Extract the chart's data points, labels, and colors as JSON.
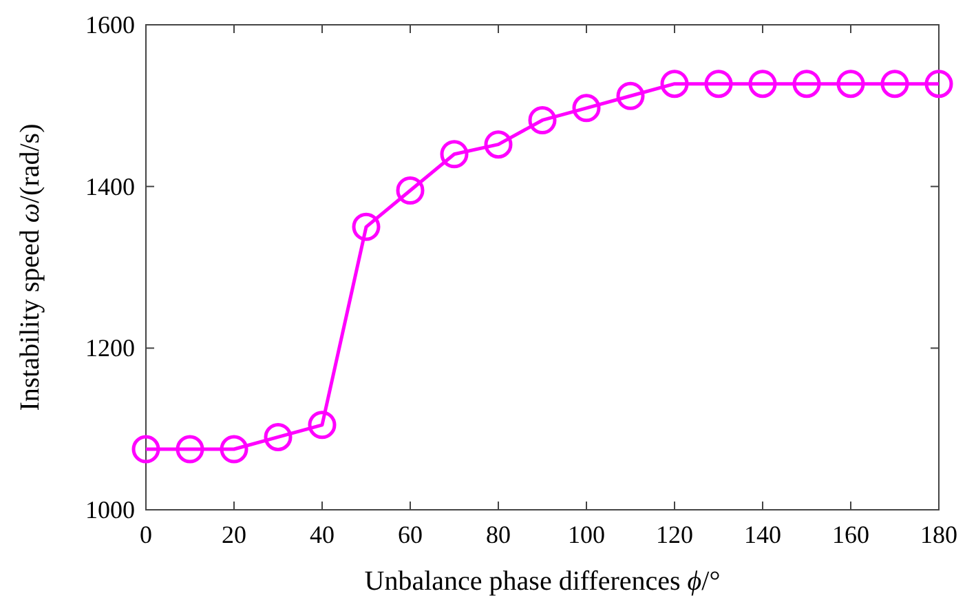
{
  "chart_data": {
    "type": "line",
    "xlabel": "Unbalance phase differences ϕ/°",
    "ylabel": "Instability speed ω/(rad/s)",
    "x": [
      0,
      10,
      20,
      30,
      40,
      50,
      60,
      70,
      80,
      90,
      100,
      110,
      120,
      130,
      140,
      150,
      160,
      170,
      180
    ],
    "series": [
      {
        "color": "#ff00ff",
        "values": [
          1075,
          1075,
          1075,
          1090,
          1105,
          1350,
          1395,
          1440,
          1452,
          1482,
          1497,
          1512,
          1527,
          1527,
          1527,
          1527,
          1527,
          1527,
          1527
        ]
      }
    ],
    "xlim": [
      0,
      180
    ],
    "xticks": [
      0,
      20,
      40,
      60,
      80,
      100,
      120,
      140,
      160,
      180
    ],
    "ylim": [
      1000,
      1600
    ],
    "yticks": [
      1000,
      1200,
      1400,
      1600
    ],
    "grid": false,
    "marker": "circle",
    "line_style": "solid"
  }
}
